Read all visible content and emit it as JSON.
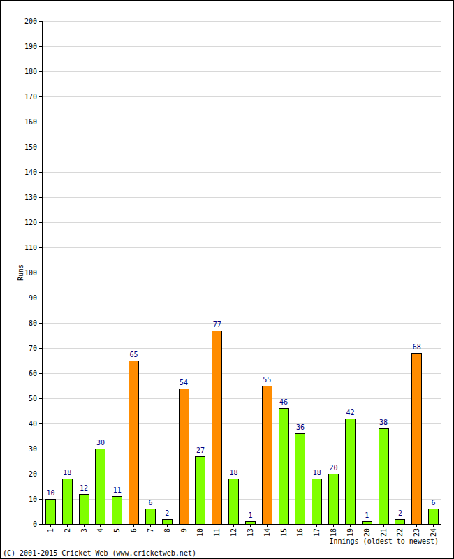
{
  "chart_data": {
    "type": "bar",
    "categories": [
      "1",
      "2",
      "3",
      "4",
      "5",
      "6",
      "7",
      "8",
      "9",
      "10",
      "11",
      "12",
      "13",
      "14",
      "15",
      "16",
      "17",
      "18",
      "19",
      "20",
      "21",
      "22",
      "23",
      "24"
    ],
    "values": [
      10,
      18,
      12,
      30,
      11,
      65,
      6,
      2,
      54,
      27,
      77,
      18,
      1,
      55,
      46,
      36,
      18,
      20,
      42,
      1,
      38,
      2,
      68,
      6
    ],
    "colors": [
      "#80ff00",
      "#80ff00",
      "#80ff00",
      "#80ff00",
      "#80ff00",
      "#ff8c00",
      "#80ff00",
      "#80ff00",
      "#ff8c00",
      "#80ff00",
      "#ff8c00",
      "#80ff00",
      "#80ff00",
      "#ff8c00",
      "#80ff00",
      "#80ff00",
      "#80ff00",
      "#80ff00",
      "#80ff00",
      "#80ff00",
      "#80ff00",
      "#80ff00",
      "#ff8c00",
      "#80ff00"
    ],
    "x_label": "Innings (oldest to newest)",
    "y_label": "Runs",
    "annotations": [
      "(C) 2001-2015 Cricket Web (www.cricketweb.net)"
    ],
    "ylim": [
      0,
      200
    ],
    "yticks": [
      0,
      10,
      20,
      30,
      40,
      50,
      60,
      70,
      80,
      90,
      100,
      110,
      120,
      130,
      140,
      150,
      160,
      170,
      180,
      190,
      200
    ],
    "grid": true,
    "data_labels": true
  }
}
